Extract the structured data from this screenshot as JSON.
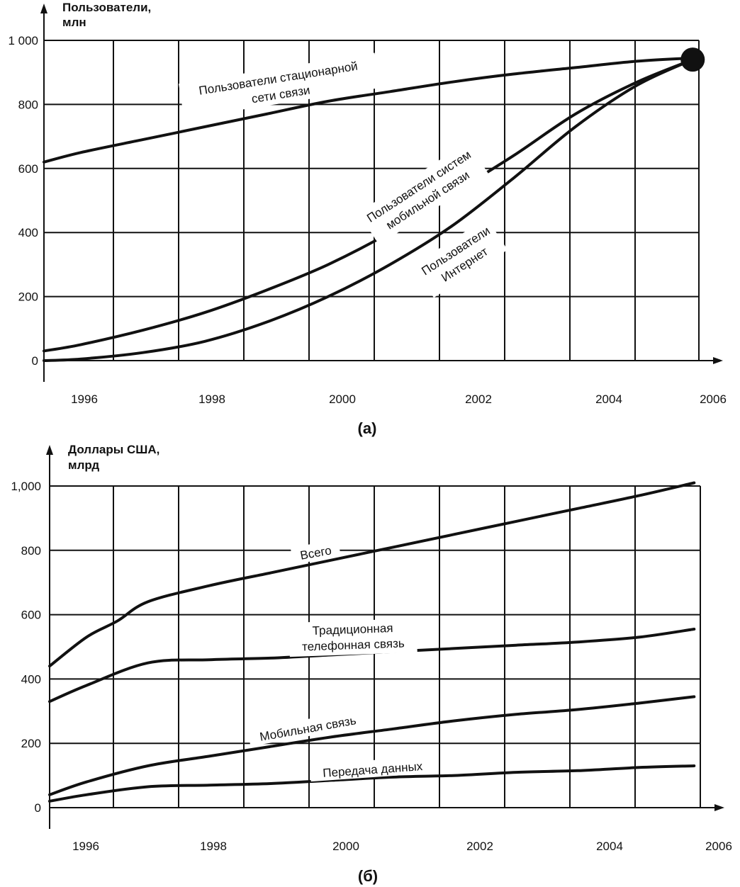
{
  "chart_data": [
    {
      "type": "line",
      "panel_label": "(a)",
      "ylabel_line1": "Пользователи,",
      "ylabel_line2": "млн",
      "xlabel": "",
      "ylim": [
        0,
        1000
      ],
      "xlim": [
        1995.4,
        2006
      ],
      "y_ticks": [
        "0",
        "200",
        "400",
        "600",
        "800",
        "1 000"
      ],
      "x_ticks": [
        "1996",
        "1998",
        "2000",
        "2002",
        "2004",
        "2006"
      ],
      "series": [
        {
          "name": "Пользователи стационарной сети связи",
          "label_lines": [
            "Пользователи стационарной",
            "сети связи"
          ],
          "x": [
            1995.4,
            1996,
            1997,
            1998,
            1999,
            2000,
            2001,
            2002,
            2003,
            2004,
            2005,
            2005.9
          ],
          "values": [
            620,
            650,
            690,
            730,
            770,
            810,
            840,
            870,
            895,
            915,
            935,
            945
          ]
        },
        {
          "name": "Пользователи систем мобильной связи",
          "label_lines": [
            "Пользователи систем",
            "мобильной связи"
          ],
          "x": [
            1995.4,
            1996,
            1997,
            1998,
            1999,
            2000,
            2001,
            2002,
            2003,
            2004,
            2005,
            2005.9
          ],
          "values": [
            30,
            50,
            95,
            150,
            220,
            300,
            400,
            520,
            640,
            770,
            870,
            940
          ]
        },
        {
          "name": "Пользователи Интернет",
          "label_lines": [
            "Пользователи",
            "Интернет"
          ],
          "x": [
            1995.4,
            1996,
            1997,
            1998,
            1999,
            2000,
            2001,
            2002,
            2003,
            2004,
            2005,
            2005.9
          ],
          "values": [
            0,
            5,
            25,
            60,
            120,
            200,
            300,
            420,
            570,
            730,
            860,
            940
          ]
        }
      ],
      "convergence_point": {
        "x": 2005.9,
        "y": 940
      }
    },
    {
      "type": "line",
      "panel_label": "(б)",
      "ylabel_line1": "Доллары США,",
      "ylabel_line2": "млрд",
      "xlabel": "",
      "ylim": [
        0,
        1000
      ],
      "xlim": [
        1995.4,
        2006
      ],
      "y_ticks": [
        "0",
        "200",
        "400",
        "600",
        "800",
        "1,000"
      ],
      "x_ticks": [
        "1996",
        "1998",
        "2000",
        "2002",
        "2004",
        "2006"
      ],
      "series": [
        {
          "name": "Всего",
          "label_lines": [
            "Всего"
          ],
          "x": [
            1995.4,
            1996,
            1996.5,
            1997,
            1998,
            1999,
            2000,
            2001,
            2002,
            2003,
            2004,
            2005,
            2005.9
          ],
          "values": [
            440,
            530,
            580,
            640,
            690,
            730,
            770,
            810,
            850,
            890,
            930,
            970,
            1010
          ]
        },
        {
          "name": "Традиционная телефонная связь",
          "label_lines": [
            "Традиционная",
            "телефонная связь"
          ],
          "x": [
            1995.4,
            1996,
            1997,
            1998,
            1999,
            2000,
            2001,
            2002,
            2003,
            2004,
            2005,
            2005.9
          ],
          "values": [
            330,
            380,
            450,
            460,
            465,
            475,
            485,
            495,
            505,
            515,
            530,
            555
          ]
        },
        {
          "name": "Мобильная связь",
          "label_lines": [
            "Мобильная связь"
          ],
          "x": [
            1995.4,
            1996,
            1997,
            1998,
            1999,
            2000,
            2001,
            2002,
            2003,
            2004,
            2005,
            2005.9
          ],
          "values": [
            40,
            80,
            130,
            160,
            190,
            220,
            245,
            270,
            290,
            305,
            325,
            345
          ]
        },
        {
          "name": "Передача данных",
          "label_lines": [
            "Передача данных"
          ],
          "x": [
            1995.4,
            1996,
            1997,
            1998,
            1999,
            2000,
            2001,
            2002,
            2003,
            2004,
            2005,
            2005.9
          ],
          "values": [
            20,
            40,
            65,
            70,
            75,
            85,
            95,
            100,
            110,
            115,
            125,
            130
          ]
        }
      ]
    }
  ]
}
